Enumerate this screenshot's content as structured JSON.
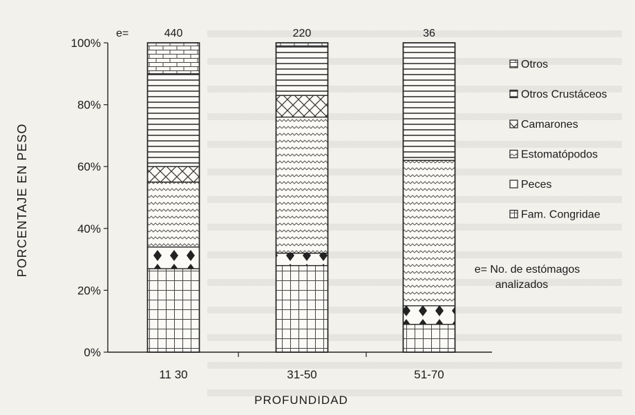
{
  "chart_data": {
    "type": "bar",
    "stacked": true,
    "percent_scale": true,
    "title": "",
    "xlabel": "PROFUNDIDAD",
    "ylabel": "PORCENTAJE EN PESO",
    "ylim": [
      0,
      100
    ],
    "yticks": [
      "0%",
      "20%",
      "40%",
      "60%",
      "80%",
      "100%"
    ],
    "categories": [
      "11 30",
      "31-50",
      "51-70"
    ],
    "n_prefix": "e=",
    "n_labels": [
      "440",
      "220",
      "36"
    ],
    "series": [
      {
        "name": "Fam. Congridae",
        "values": [
          27,
          28,
          9
        ],
        "pattern": "grid"
      },
      {
        "name": "Peces",
        "values": [
          7,
          4,
          6
        ],
        "pattern": "diamond"
      },
      {
        "name": "Estomatópodos",
        "values": [
          21,
          44,
          47
        ],
        "pattern": "wave"
      },
      {
        "name": "Camarones",
        "values": [
          5,
          7,
          0
        ],
        "pattern": "cross"
      },
      {
        "name": "Otros Crustáceos",
        "values": [
          30,
          16,
          38
        ],
        "pattern": "hline"
      },
      {
        "name": "Otros",
        "values": [
          10,
          1,
          0
        ],
        "pattern": "brick"
      }
    ],
    "legend_order": [
      "Otros",
      "Otros Crustáceos",
      "Camarones",
      "Estomatópodos",
      "Peces",
      "Fam. Congridae"
    ],
    "legend_note": "e= No. de estómagos analizados",
    "legend_position": "right",
    "grid": false
  }
}
